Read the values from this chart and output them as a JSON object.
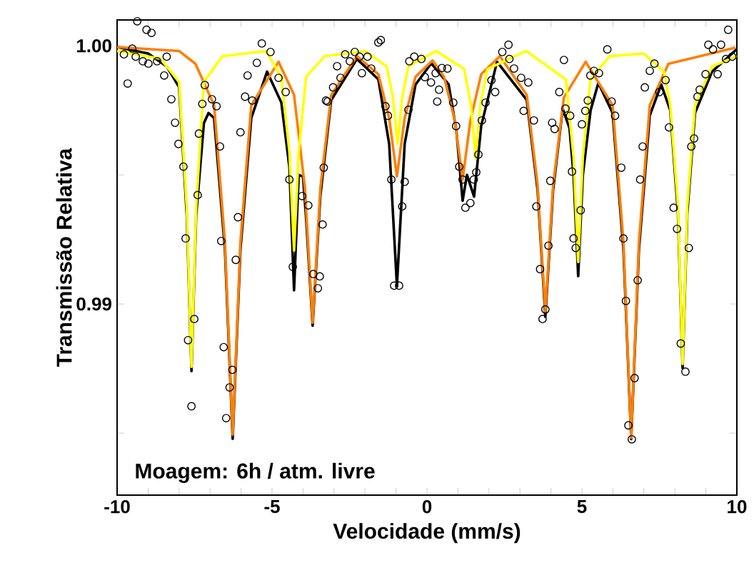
{
  "chart_data": {
    "type": "scatter",
    "xlabel": "Velocidade (mm/s)",
    "ylabel": "Transmissão Relativa",
    "annotations": [
      "Moagem: 6h / atm. livre"
    ],
    "xlim": [
      -10,
      10
    ],
    "ylim": [
      0.9826,
      1.001
    ],
    "xticks": [
      -10,
      {
        "value": -9,
        "label": null
      },
      {
        "value": -8,
        "label": null
      },
      {
        "value": -7,
        "label": null
      },
      {
        "value": -6,
        "label": null
      },
      -5,
      {
        "value": -4,
        "label": null
      },
      {
        "value": -3,
        "label": null
      },
      {
        "value": -2,
        "label": null
      },
      {
        "value": -1,
        "label": null
      },
      0,
      {
        "value": 1,
        "label": null
      },
      {
        "value": 2,
        "label": null
      },
      {
        "value": 3,
        "label": null
      },
      {
        "value": 4,
        "label": null
      },
      5,
      {
        "value": 6,
        "label": null
      },
      {
        "value": 7,
        "label": null
      },
      {
        "value": 8,
        "label": null
      },
      {
        "value": 9,
        "label": null
      },
      10
    ],
    "yticks": [
      {
        "value": 0.985,
        "label": null
      },
      0.99,
      {
        "value": 0.995,
        "label": null
      },
      {
        "value": 1.0,
        "label": "1.00"
      }
    ],
    "series": [
      {
        "marker": "circle",
        "color": "#000000",
        "x": [
          -9.35,
          -9.05,
          -8.89,
          -9.51,
          -9.78,
          -9.66,
          -9.4,
          -9.17,
          -8.99,
          -8.71,
          -8.48,
          -8.4,
          -8.25,
          -8.13,
          -8.02,
          -7.86,
          -7.79,
          -7.71,
          -7.51,
          -7.6,
          -7.4,
          -7.36,
          -7.25,
          -7.17,
          -6.94,
          -6.79,
          -6.68,
          -6.64,
          -6.56,
          -6.48,
          -6.37,
          -6.28,
          -6.17,
          -6.1,
          -6.02,
          -5.87,
          -5.64,
          -5.79,
          -5.49,
          -5.33,
          -5.05,
          -4.79,
          -4.56,
          -4.44,
          -4.33,
          -4.03,
          -3.83,
          -3.67,
          -3.52,
          -3.46,
          -3.37,
          -3.33,
          -3.26,
          -3.21,
          -3.03,
          -2.9,
          -2.79,
          -2.64,
          -2.49,
          -2.33,
          -2.18,
          -2.1,
          -1.92,
          -1.8,
          -1.57,
          -1.49,
          -1.34,
          -1.26,
          -1.15,
          -1.06,
          -0.9,
          -0.8,
          -0.72,
          -0.6,
          -0.57,
          -0.41,
          -0.18,
          -0.07,
          0.13,
          0.28,
          0.39,
          0.33,
          0.48,
          0.66,
          0.85,
          0.94,
          1.04,
          1.15,
          1.24,
          1.4,
          1.51,
          1.59,
          1.66,
          1.77,
          1.89,
          2.08,
          2.2,
          2.43,
          2.63,
          2.66,
          2.81,
          3.04,
          3.12,
          3.27,
          3.45,
          3.53,
          3.65,
          3.73,
          3.82,
          3.92,
          3.98,
          4.04,
          4.12,
          4.27,
          4.42,
          4.47,
          4.62,
          4.68,
          4.73,
          4.8,
          4.96,
          5.0,
          5.11,
          5.19,
          5.27,
          5.39,
          5.55,
          5.82,
          5.96,
          6.07,
          6.27,
          6.34,
          6.42,
          6.5,
          6.61,
          6.7,
          6.8,
          6.88,
          6.96,
          7.03,
          7.19,
          7.34,
          7.5,
          7.7,
          7.81,
          7.96,
          8.07,
          8.19,
          8.34,
          8.45,
          8.53,
          8.62,
          8.73,
          8.8,
          8.99,
          9.08,
          9.23,
          9.38,
          9.49,
          9.65,
          9.72,
          9.85
        ],
        "values": [
          1.00095,
          1.00062,
          1.0005,
          0.99989,
          0.99967,
          0.99854,
          0.99958,
          0.9994,
          0.99931,
          0.9994,
          0.99885,
          0.99958,
          0.99793,
          0.99702,
          0.9962,
          0.99532,
          0.99254,
          0.9886,
          0.98942,
          0.98604,
          0.99422,
          0.9966,
          0.99775,
          0.99848,
          0.99793,
          0.99766,
          0.9961,
          0.99244,
          0.98833,
          0.98558,
          0.98677,
          0.98745,
          0.99171,
          0.99336,
          0.99665,
          0.99803,
          0.99788,
          0.99885,
          0.99934,
          1.00009,
          0.99976,
          0.99876,
          0.99821,
          0.99482,
          0.99144,
          0.99418,
          0.99382,
          0.99116,
          0.99061,
          0.99107,
          0.99308,
          0.99528,
          0.99788,
          0.99784,
          0.99839,
          0.99921,
          0.99876,
          0.99967,
          0.9994,
          0.99976,
          0.99958,
          0.99894,
          0.99958,
          0.99912,
          1.00013,
          1.00022,
          0.99766,
          0.99729,
          0.99482,
          0.99071,
          0.99071,
          0.99378,
          0.99473,
          0.99752,
          0.9994,
          0.99958,
          0.99949,
          0.99879,
          0.99858,
          0.99894,
          0.9983,
          0.99784,
          0.99914,
          0.99912,
          0.9978,
          0.99689,
          0.99532,
          0.99482,
          0.99373,
          0.99391,
          0.99482,
          0.9951,
          0.99579,
          0.99711,
          0.9978,
          0.99867,
          0.99821,
          0.99976,
          1.00004,
          0.99949,
          0.99912,
          0.99876,
          0.99748,
          0.99858,
          0.99711,
          0.99378,
          0.99135,
          0.98942,
          0.98979,
          0.99226,
          0.99477,
          0.99702,
          0.99678,
          0.99821,
          0.99945,
          0.99757,
          0.99729,
          0.99513,
          0.99254,
          0.99217,
          0.99363,
          0.99696,
          0.99748,
          0.99788,
          0.99885,
          0.99903,
          0.99894,
          0.99986,
          0.99784,
          0.99729,
          0.99528,
          0.99254,
          0.99012,
          0.9853,
          0.98476,
          0.98713,
          0.99092,
          0.99482,
          0.9961,
          0.99839,
          0.99903,
          0.99931,
          0.99821,
          0.99867,
          0.99684,
          0.99373,
          0.99291,
          0.98847,
          0.98738,
          0.99217,
          0.9961,
          0.99641,
          0.99803,
          0.9983,
          0.9989,
          1.00004,
          0.99986,
          0.9989,
          1.00004,
          0.99949,
          1.00062,
          0.99958
        ]
      },
      {
        "type": "line",
        "color": "#000000",
        "x": [
          -10,
          -9,
          -8.4,
          -8.0,
          -7.75,
          -7.6,
          -7.45,
          -7.2,
          -7.05,
          -6.87,
          -6.52,
          -6.27,
          -6.02,
          -5.67,
          -5.16,
          -4.7,
          -4.44,
          -4.29,
          -4.14,
          -4.0,
          -3.9,
          -3.69,
          -3.44,
          -3.09,
          -2.26,
          -1.57,
          -1.22,
          -0.97,
          -0.72,
          -0.37,
          0.14,
          0.7,
          0.95,
          1.15,
          1.29,
          1.52,
          1.75,
          2.26,
          3.22,
          3.57,
          3.82,
          4.07,
          4.38,
          4.6,
          4.73,
          4.88,
          5.03,
          5.28,
          5.53,
          5.99,
          6.34,
          6.59,
          6.84,
          7.19,
          7.56,
          7.85,
          8.1,
          8.25,
          8.4,
          8.65,
          9.2,
          10
        ],
        "values": [
          0.99995,
          0.9997,
          0.9992,
          0.9984,
          0.9934,
          0.9874,
          0.9934,
          0.997,
          0.9974,
          0.9972,
          0.9921,
          0.98478,
          0.9921,
          0.9972,
          0.999,
          0.9978,
          0.9953,
          0.99053,
          0.995,
          0.99493,
          0.9933,
          0.98916,
          0.9942,
          0.9979,
          0.99949,
          0.9987,
          0.9962,
          0.9907,
          0.9962,
          0.9985,
          0.99932,
          0.9985,
          0.9967,
          0.994,
          0.995,
          0.99416,
          0.9969,
          0.99938,
          0.9979,
          0.9944,
          0.9895,
          0.9944,
          0.99756,
          0.9968,
          0.995,
          0.99108,
          0.995,
          0.9975,
          0.99856,
          0.9974,
          0.9921,
          0.98477,
          0.9921,
          0.9973,
          0.9985,
          0.9975,
          0.9935,
          0.98751,
          0.9935,
          0.9974,
          0.999,
          0.99987
        ]
      },
      {
        "type": "line",
        "color": "#ff7f00",
        "x": [
          -10,
          -8,
          -7.47,
          -6.87,
          -6.52,
          -6.27,
          -6.02,
          -5.67,
          -4.79,
          -4.29,
          -3.94,
          -3.69,
          -3.44,
          -3.09,
          -2.26,
          -1.57,
          -1.22,
          -0.97,
          -0.72,
          -0.37,
          0.18,
          0.55,
          0.9,
          1.15,
          1.4,
          1.75,
          2.35,
          3.22,
          3.57,
          3.82,
          4.07,
          4.42,
          5.12,
          5.99,
          6.34,
          6.59,
          6.84,
          7.19,
          7.79,
          9.95
        ],
        "values": [
          0.99995,
          0.9998,
          0.9993,
          0.9977,
          0.9924,
          0.98494,
          0.9924,
          0.9977,
          0.99938,
          0.9981,
          0.9945,
          0.98928,
          0.9945,
          0.9981,
          0.9996,
          0.9989,
          0.9972,
          0.99494,
          0.9972,
          0.9988,
          0.99943,
          0.9988,
          0.9971,
          0.99482,
          0.9971,
          0.9989,
          0.9996,
          0.9981,
          0.9946,
          0.98972,
          0.9946,
          0.998,
          0.99938,
          0.9977,
          0.9924,
          0.98482,
          0.9924,
          0.9977,
          0.9993,
          0.99993
        ]
      },
      {
        "type": "line",
        "color": "#ffff00",
        "x": [
          -10,
          -8.6,
          -8.0,
          -7.75,
          -7.6,
          -7.45,
          -7.2,
          -6.6,
          -5.2,
          -4.7,
          -4.44,
          -4.29,
          -4.14,
          -3.9,
          -3.3,
          -2.0,
          -1.3,
          -1.1,
          -0.95,
          -0.8,
          -0.6,
          0.3,
          1.2,
          1.42,
          1.57,
          1.72,
          1.95,
          3.2,
          4.48,
          4.73,
          4.88,
          5.03,
          5.28,
          5.9,
          7.0,
          7.65,
          7.85,
          8.1,
          8.25,
          8.4,
          8.65,
          9.2,
          10
        ],
        "values": [
          0.9998,
          0.9995,
          0.9986,
          0.9937,
          0.98757,
          0.9937,
          0.9986,
          0.9996,
          0.9998,
          0.9988,
          0.9959,
          0.99207,
          0.9959,
          0.9988,
          0.9996,
          0.9998,
          0.9992,
          0.998,
          0.9962,
          0.998,
          0.9992,
          0.9998,
          0.9991,
          0.9977,
          0.99564,
          0.9977,
          0.9991,
          0.9998,
          0.9987,
          0.9957,
          0.99163,
          0.9957,
          0.9987,
          0.9996,
          0.9997,
          0.999,
          0.9977,
          0.9938,
          0.98768,
          0.9938,
          0.9977,
          0.9992,
          0.9996
        ]
      }
    ]
  }
}
